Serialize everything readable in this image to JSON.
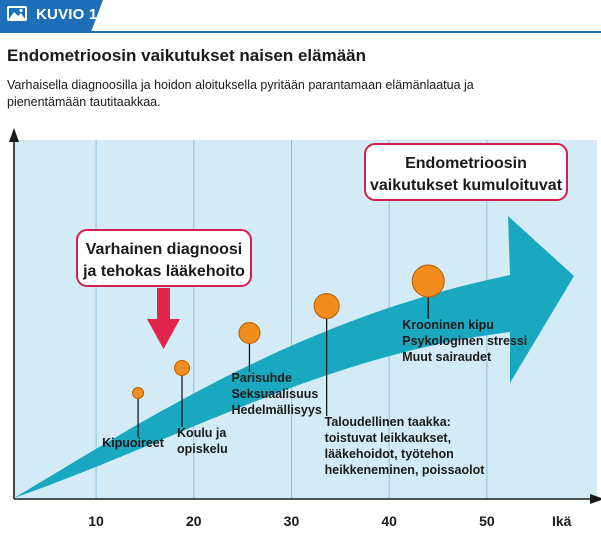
{
  "header": {
    "tag_label": "KUVIO 1.",
    "title": "Endometrioosin vaikutukset naisen elämään",
    "subtitle": "Varhaisella diagnoosilla ja hoidon aloituksella pyritään parantamaan elämänlaatua ja pienentämään tautitaakkaa."
  },
  "diagram": {
    "x_axis": {
      "label": "Ikä",
      "ticks": [
        "10",
        "20",
        "30",
        "40",
        "50"
      ]
    },
    "callouts": {
      "early": [
        "Varhainen diagnoosi",
        "ja tehokas lääkehoito"
      ],
      "cumulative": [
        "Endometrioosin",
        "vaikutukset kumuloituvat"
      ]
    },
    "milestones": [
      {
        "age": 14.3,
        "size": "xs",
        "lines": [
          "Kipuoireet"
        ]
      },
      {
        "age": 18.8,
        "size": "s",
        "lines": [
          "Koulu ja",
          "opiskelu"
        ]
      },
      {
        "age": 25.7,
        "size": "m",
        "lines": [
          "Parisuhde",
          "Seksuaalisuus",
          "Hedelmällisyys"
        ]
      },
      {
        "age": 33.6,
        "size": "l",
        "lines": [
          "Taloudellinen taakka:",
          "toistuvat leikkaukset,",
          "lääkehoidot, työtehon",
          "heikkeneminen, poissaolot"
        ]
      },
      {
        "age": 44.0,
        "size": "xl",
        "lines": [
          "Krooninen kipu",
          "Psykologinen stressi",
          "Muut sairaudet"
        ]
      }
    ],
    "colors": {
      "brand": "#1d6fb8",
      "background": "#d3ebf6",
      "arrow": "#1aa8c1",
      "circle": "#f28c1a",
      "callout_border": "#d21f4c",
      "down_arrow": "#e0254d"
    }
  }
}
